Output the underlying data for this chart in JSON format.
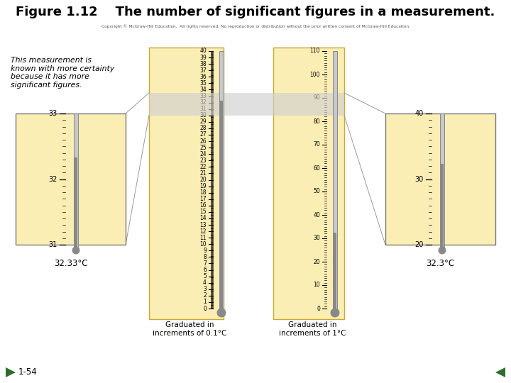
{
  "title": "Figure 1.12    The number of significant figures in a measurement.",
  "title_fontsize": 13,
  "title_fontweight": "bold",
  "bg_color": "#ffffff",
  "thermo_bg": "#faeeb5",
  "thermo_border": "#c8a830",
  "zoom_bg": "#faeeb5",
  "zoom_border": "#999999",
  "highlight_color": "#d0d0d0",
  "italic_text": "This measurement is\nknown with more certainty\nbecause it has more\nsignificant figures.",
  "left_label": "32.33°C",
  "right_label": "32.3°C",
  "bottom_left_label": "Graduated in\nincrements of 0.1°C",
  "bottom_right_label": "Graduated in\nincrements of 1°C",
  "copyright_text": "Copyright © McGraw-Hill Education.  All rights reserved. No reproduction or distribution without the prior written consent of McGraw-Hill Education.",
  "slide_label": "1-54",
  "arrow_color": "#2d6e2d",
  "tube_face": "#c8c8c8",
  "tube_edge": "#888888",
  "mercury_color": "#888888",
  "bulb_color": "#888888"
}
